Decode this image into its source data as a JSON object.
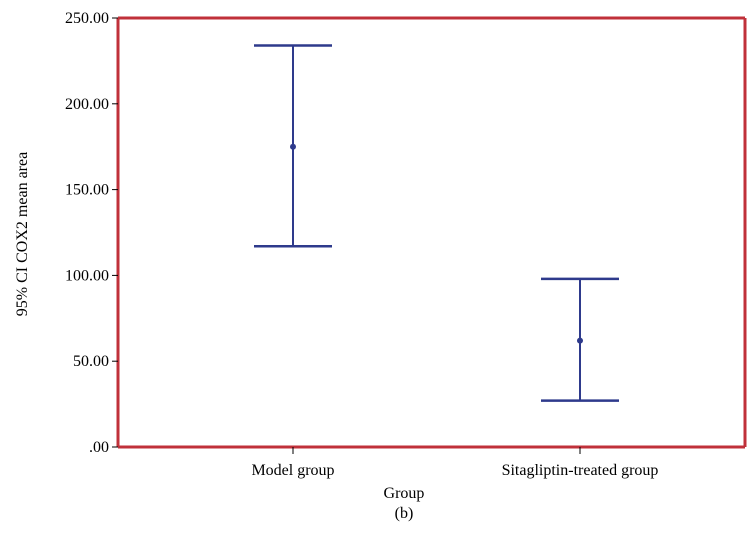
{
  "chart_data": {
    "type": "errorbar",
    "title": "",
    "xlabel": "Group",
    "ylabel": "95% CI COX2 mean area",
    "caption": "(b)",
    "categories": [
      "Model group",
      "Sitagliptin-treated group"
    ],
    "series": [
      {
        "means": [
          175,
          62
        ],
        "lower": [
          117,
          27
        ],
        "upper": [
          234,
          98
        ]
      }
    ],
    "ylim": [
      0,
      250
    ],
    "yticks": [
      0,
      50,
      100,
      150,
      200,
      250
    ],
    "ytick_labels": [
      ".00",
      "50.00",
      "100.00",
      "150.00",
      "200.00",
      "250.00"
    ],
    "grid": false,
    "legend": "none",
    "colors": {
      "frame": "#c0313a",
      "error_bar": "#2e3a8c",
      "axis": "#000000"
    }
  }
}
